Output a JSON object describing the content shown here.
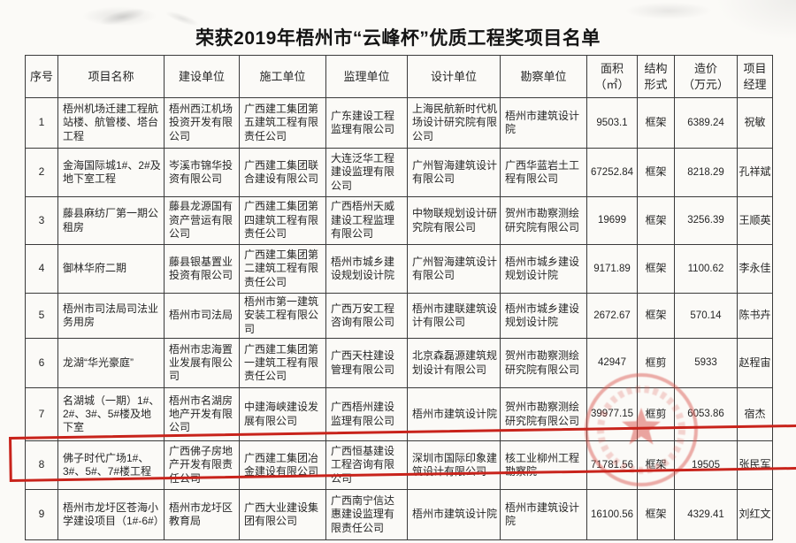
{
  "title": "荣获2019年梧州市“云峰杯”优质工程奖项目名单",
  "table": {
    "headers": [
      "序号",
      "项目名称",
      "建设单位",
      "施工单位",
      "监理单位",
      "设计单位",
      "勘察单位",
      "面积\n（㎡）",
      "结构\n形式",
      "造价\n（万元）",
      "项目\n经理"
    ],
    "rows": [
      [
        "1",
        "梧州机场迁建工程航站楼、航管楼、塔台工程",
        "梧州西江机场投资开发有限公司",
        "广西建工集团第五建筑工程有限责任公司",
        "广东建设工程监理有限公司",
        "上海民航新时代机场设计研究院有限公司",
        "梧州市建筑设计院",
        "9503.1",
        "框架",
        "6389.24",
        "祝敏"
      ],
      [
        "2",
        "金海国际城1#、2#及地下室工程",
        "岑溪市锦华投资有限公司",
        "广西建工集团联合建设有限公司",
        "大连泛华工程建设监理有限公司",
        "广州智海建筑设计有限公司",
        "广西华蓝岩土工程有限公司",
        "67252.84",
        "框架",
        "8218.29",
        "孔祥斌"
      ],
      [
        "3",
        "藤县麻纺厂第一期公租房",
        "藤县龙源国有资产营运有限公司",
        "广西建工集团第四建筑工程有限责任公司",
        "广西梧州天威建设工程监理有限公司",
        "中物联规划设计研究院有限公司",
        "贺州市勘察测绘研究院有限公司",
        "19699",
        "框架",
        "3256.39",
        "王顺英"
      ],
      [
        "4",
        "御林华府二期",
        "藤县银基置业投资有限公司",
        "广西建工集团第二建筑工程有限责任公司",
        "梧州市城乡建设规划设计院",
        "广州智海建筑设计有限公司",
        "梧州市城乡建设规划设计院",
        "9171.89",
        "框架",
        "1100.62",
        "李永佳"
      ],
      [
        "5",
        "梧州市司法局司法业务用房",
        "梧州市司法局",
        "梧州市第一建筑安装工程有限公司",
        "广西万安工程咨询有限公司",
        "梧州市建联建筑设计有限公司",
        "梧州市城乡建设规划设计院",
        "2672.67",
        "框架",
        "570.14",
        "陈书卉"
      ],
      [
        "6",
        "龙湖“华光豪庭”",
        "梧州市忠海置业发展有限公司",
        "广西建工集团第一建筑工程有限责任公司",
        "广西天柱建设管理有限公司",
        "北京森磊源建筑规划设计有限公司",
        "贺州市勘察测绘研究院有限公司",
        "42947",
        "框剪",
        "5933",
        "赵程宙"
      ],
      [
        "7",
        "名湖城（一期）1#、2#、3#、5#楼及地下室",
        "梧州市名湖房地产开发有限公司",
        "中建海峡建设发展有限公司",
        "广西梧州建设监理有限公司",
        "梧州市建筑设计院",
        "贺州市勘察测绘研究院有限公司",
        "39977.15",
        "框剪",
        "6053.86",
        "宿杰"
      ],
      [
        "8",
        "佛子时代广场1#、3#、5#、7#楼工程",
        "广西佛子房地产开发有限责任公司",
        "广西建工集团冶金建设有限公司",
        "广西恒基建设工程咨询有限公司",
        "深圳市国际印象建筑设计有限公司",
        "核工业柳州工程勘察院",
        "71781.56",
        "框架",
        "19505",
        "张民军"
      ],
      [
        "9",
        "梧州市龙圩区苍海小学建设项目（1#-6#）",
        "梧州市龙圩区教育局",
        "广西大业建设集团有限公司",
        "广西南宁信达惠建设监理有限责任公司",
        "梧州市建筑设计院",
        "梧州市建筑设计院",
        "16100.56",
        "框架",
        "4329.41",
        "刘红文"
      ]
    ]
  },
  "annotations": {
    "row_highlight": {
      "row_number": "8",
      "color": "#c8231b"
    },
    "seal": {
      "name": "red-seal-stamp",
      "color": "#d8524a"
    }
  }
}
